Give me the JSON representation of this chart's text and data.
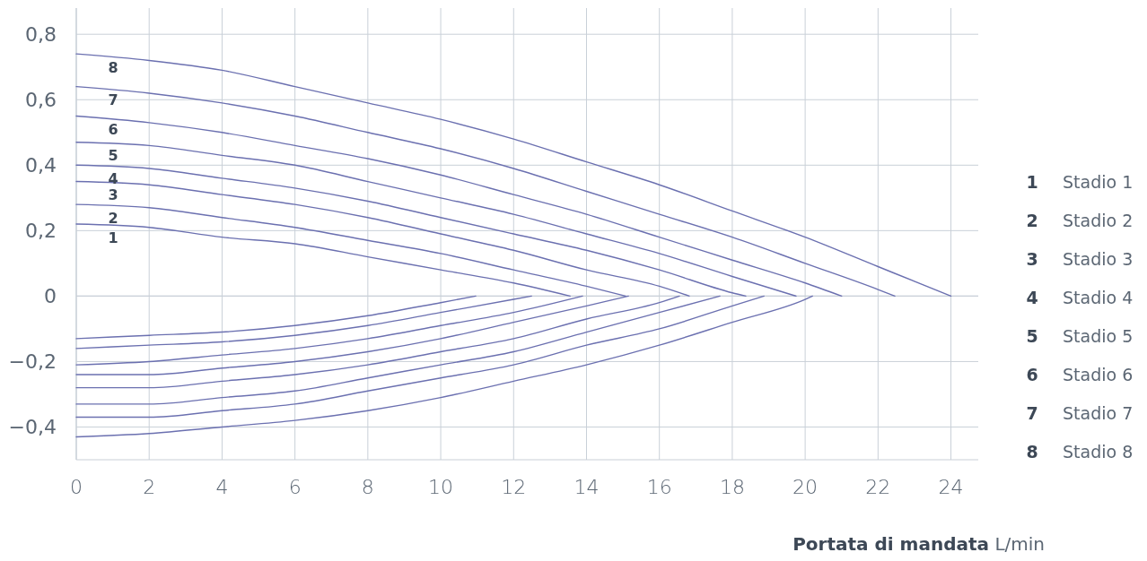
{
  "chart_data": {
    "type": "line",
    "xlabel": "Portata di mandata L/min",
    "xlim": [
      0,
      24.75
    ],
    "ylim": [
      -0.5,
      0.88
    ],
    "xticks": [
      0,
      2,
      4,
      6,
      8,
      10,
      12,
      14,
      16,
      18,
      20,
      22,
      24
    ],
    "yticks": [
      {
        "value": -0.4,
        "label": "−0,4"
      },
      {
        "value": -0.2,
        "label": "−0,2"
      },
      0,
      {
        "value": 0.2,
        "label": "0,2"
      },
      {
        "value": 0.4,
        "label": "0,4"
      },
      {
        "value": 0.6,
        "label": "0,6"
      },
      {
        "value": 0.8,
        "label": "0,8"
      }
    ],
    "grid": true,
    "legend": "right",
    "marker": "none",
    "line_style": "solid",
    "series": [
      {
        "name": "Stadio 1",
        "color": "#6b70b0",
        "x": [
          0,
          2,
          4,
          6,
          8,
          10,
          12,
          13.55
        ],
        "values": [
          0.22,
          0.21,
          0.18,
          0.16,
          0.12,
          0.08,
          0.04,
          0
        ]
      },
      {
        "name": "Stadio 2",
        "color": "#6b70b0",
        "x": [
          0,
          2,
          4,
          6,
          8,
          10,
          12,
          14,
          15.07
        ],
        "values": [
          0.28,
          0.27,
          0.24,
          0.21,
          0.17,
          0.13,
          0.08,
          0.03,
          0
        ]
      },
      {
        "name": "Stadio 3",
        "color": "#6b70b0",
        "x": [
          0,
          2,
          4,
          6,
          8,
          10,
          12,
          14,
          16,
          16.82
        ],
        "values": [
          0.35,
          0.34,
          0.31,
          0.28,
          0.24,
          0.19,
          0.14,
          0.08,
          0.03,
          0
        ]
      },
      {
        "name": "Stadio 4",
        "color": "#6b70b0",
        "x": [
          0,
          2,
          4,
          6,
          8,
          10,
          12,
          14,
          16,
          18,
          18.37
        ],
        "values": [
          0.4,
          0.39,
          0.36,
          0.33,
          0.29,
          0.24,
          0.19,
          0.14,
          0.08,
          0.01,
          0
        ]
      },
      {
        "name": "Stadio 5",
        "color": "#6b70b0",
        "x": [
          0,
          2,
          4,
          6,
          8,
          10,
          12,
          14,
          16,
          18,
          19.75
        ],
        "values": [
          0.47,
          0.46,
          0.43,
          0.4,
          0.35,
          0.3,
          0.25,
          0.19,
          0.13,
          0.06,
          0
        ]
      },
      {
        "name": "Stadio 6",
        "color": "#6b70b0",
        "x": [
          0,
          2,
          4,
          6,
          8,
          10,
          12,
          14,
          16,
          18,
          20,
          21
        ],
        "values": [
          0.55,
          0.53,
          0.5,
          0.46,
          0.42,
          0.37,
          0.31,
          0.25,
          0.18,
          0.11,
          0.04,
          0
        ]
      },
      {
        "name": "Stadio 7",
        "color": "#6b70b0",
        "x": [
          0,
          2,
          4,
          6,
          8,
          10,
          12,
          14,
          16,
          18,
          20,
          22,
          22.46
        ],
        "values": [
          0.64,
          0.62,
          0.59,
          0.55,
          0.5,
          0.45,
          0.39,
          0.32,
          0.25,
          0.18,
          0.1,
          0.02,
          0
        ]
      },
      {
        "name": "Stadio 8",
        "color": "#6b70b0",
        "x": [
          0,
          2,
          4,
          6,
          8,
          10,
          12,
          14,
          16,
          18,
          20,
          22,
          24
        ],
        "values": [
          0.74,
          0.72,
          0.69,
          0.64,
          0.59,
          0.54,
          0.48,
          0.41,
          0.34,
          0.26,
          0.18,
          0.09,
          0
        ]
      },
      {
        "color": "#6b70b0",
        "x": [
          0,
          2,
          4,
          6,
          8,
          10,
          10.96
        ],
        "values": [
          -0.13,
          -0.12,
          -0.11,
          -0.09,
          -0.06,
          -0.02,
          0
        ]
      },
      {
        "color": "#6b70b0",
        "x": [
          0,
          2,
          4,
          6,
          8,
          10,
          12,
          12.49
        ],
        "values": [
          -0.16,
          -0.15,
          -0.14,
          -0.12,
          -0.09,
          -0.05,
          -0.01,
          0
        ]
      },
      {
        "color": "#6b70b0",
        "x": [
          0,
          2,
          4,
          6,
          8,
          10,
          12,
          13.89
        ],
        "values": [
          -0.21,
          -0.2,
          -0.18,
          -0.16,
          -0.13,
          -0.09,
          -0.05,
          0
        ]
      },
      {
        "color": "#6b70b0",
        "x": [
          0,
          2,
          4,
          6,
          8,
          10,
          12,
          14,
          15.15
        ],
        "values": [
          -0.24,
          -0.24,
          -0.22,
          -0.2,
          -0.17,
          -0.13,
          -0.08,
          -0.03,
          0
        ]
      },
      {
        "color": "#6b70b0",
        "x": [
          0,
          2,
          4,
          6,
          8,
          10,
          12,
          14,
          16,
          16.55
        ],
        "values": [
          -0.28,
          -0.28,
          -0.26,
          -0.24,
          -0.21,
          -0.17,
          -0.13,
          -0.07,
          -0.02,
          0
        ]
      },
      {
        "color": "#6b70b0",
        "x": [
          0,
          2,
          4,
          6,
          8,
          10,
          12,
          14,
          16,
          17.66
        ],
        "values": [
          -0.33,
          -0.33,
          -0.31,
          -0.29,
          -0.25,
          -0.21,
          -0.17,
          -0.11,
          -0.05,
          0
        ]
      },
      {
        "color": "#6b70b0",
        "x": [
          0,
          2,
          4,
          6,
          8,
          10,
          12,
          14,
          16,
          18,
          18.87
        ],
        "values": [
          -0.37,
          -0.37,
          -0.35,
          -0.33,
          -0.29,
          -0.25,
          -0.21,
          -0.15,
          -0.1,
          -0.03,
          0
        ]
      },
      {
        "color": "#6b70b0",
        "x": [
          0,
          2,
          4,
          6,
          8,
          10,
          12,
          14,
          16,
          18,
          20,
          20.2
        ],
        "values": [
          -0.43,
          -0.42,
          -0.4,
          -0.38,
          -0.35,
          -0.31,
          -0.26,
          -0.21,
          -0.15,
          -0.08,
          -0.01,
          0
        ]
      }
    ],
    "annotations": [
      "1",
      "2",
      "3",
      "4",
      "5",
      "6",
      "7",
      "8"
    ]
  }
}
